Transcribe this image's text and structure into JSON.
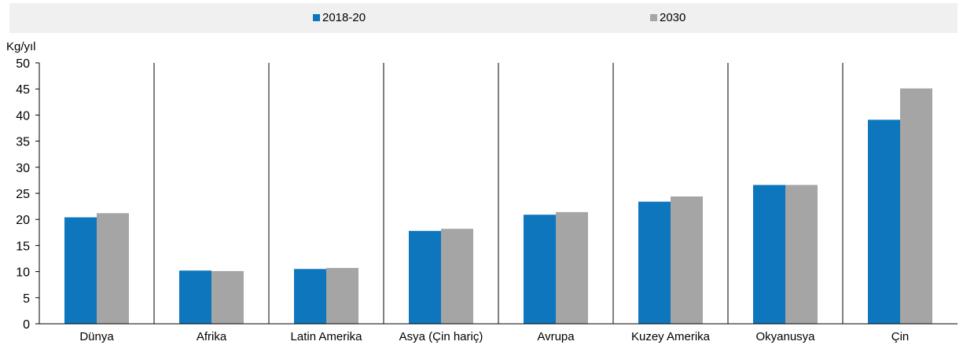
{
  "chart_data": {
    "type": "bar",
    "ylabel": "Kg/yıl",
    "ylim": [
      0,
      50
    ],
    "yticks": [
      0,
      5,
      10,
      15,
      20,
      25,
      30,
      35,
      40,
      45,
      50
    ],
    "categories": [
      "Dünya",
      "Afrika",
      "Latin Amerika",
      "Asya (Çin hariç)",
      "Avrupa",
      "Kuzey Amerika",
      "Okyanusya",
      "Çin"
    ],
    "series": [
      {
        "name": "2018-20",
        "color": "#0d76bd",
        "values": [
          20.4,
          10.2,
          10.5,
          17.8,
          20.9,
          23.4,
          26.6,
          39.1
        ]
      },
      {
        "name": "2030",
        "color": "#a5a5a5",
        "values": [
          21.2,
          10.1,
          10.7,
          18.2,
          21.4,
          24.4,
          26.6,
          45.1
        ]
      }
    ],
    "legend_position": "top",
    "grid": false
  }
}
